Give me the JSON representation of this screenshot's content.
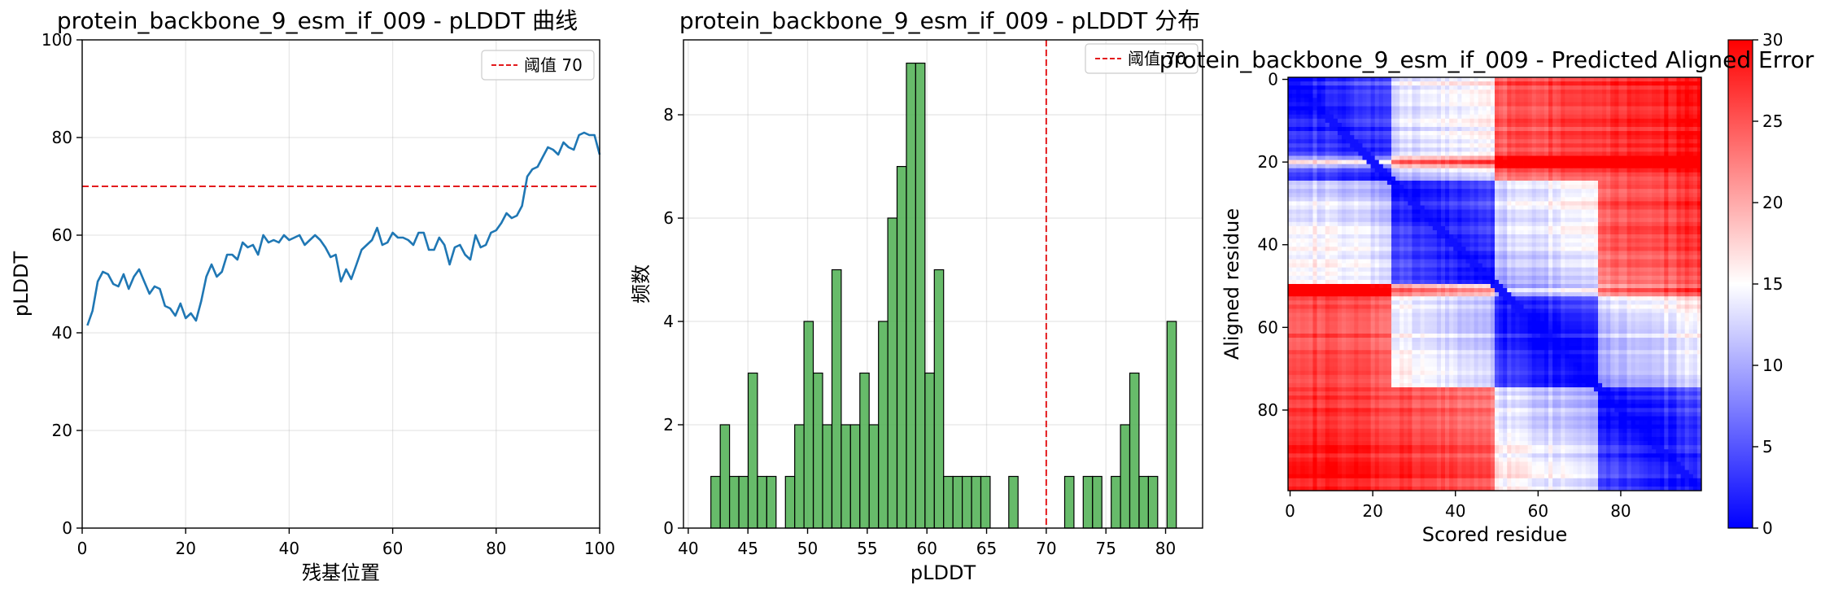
{
  "chart_data": [
    {
      "type": "line",
      "title": "protein_backbone_9_esm_if_009 - pLDDT 曲线",
      "xlabel": "残基位置",
      "ylabel": "pLDDT",
      "xlim": [
        0,
        100
      ],
      "ylim": [
        0,
        100
      ],
      "xticks": [
        "0",
        "20",
        "40",
        "60",
        "80",
        "100"
      ],
      "yticks": [
        "0",
        "20",
        "40",
        "60",
        "80",
        "100"
      ],
      "grid": true,
      "legend_placement": "upper-right",
      "line_color": "#1f77b4",
      "threshold": {
        "value": 70,
        "label": "阈值 70",
        "color": "#e31a1c"
      },
      "x": [
        1,
        2,
        3,
        4,
        5,
        6,
        7,
        8,
        9,
        10,
        11,
        12,
        13,
        14,
        15,
        16,
        17,
        18,
        19,
        20,
        21,
        22,
        23,
        24,
        25,
        26,
        27,
        28,
        29,
        30,
        31,
        32,
        33,
        34,
        35,
        36,
        37,
        38,
        39,
        40,
        41,
        42,
        43,
        44,
        45,
        46,
        47,
        48,
        49,
        50,
        51,
        52,
        53,
        54,
        55,
        56,
        57,
        58,
        59,
        60,
        61,
        62,
        63,
        64,
        65,
        66,
        67,
        68,
        69,
        70,
        71,
        72,
        73,
        74,
        75,
        76,
        77,
        78,
        79,
        80,
        81,
        82,
        83,
        84,
        85,
        86,
        87,
        88,
        89,
        90,
        91,
        92,
        93,
        94,
        95,
        96,
        97,
        98,
        99,
        100
      ],
      "y": [
        41.5,
        44.5,
        50.5,
        52.5,
        52.0,
        50.0,
        49.5,
        52.0,
        49.0,
        51.5,
        53.0,
        50.5,
        48.0,
        49.5,
        49.0,
        45.5,
        45.0,
        43.5,
        46.0,
        43.0,
        44.0,
        42.5,
        46.5,
        51.5,
        54.0,
        51.5,
        52.5,
        56.0,
        56.0,
        55.0,
        58.5,
        57.5,
        58.0,
        56.0,
        60.0,
        58.5,
        59.0,
        58.5,
        60.0,
        59.0,
        59.5,
        60.0,
        58.0,
        59.0,
        60.0,
        59.0,
        57.5,
        55.5,
        56.0,
        50.5,
        53.0,
        51.0,
        54.0,
        57.0,
        58.0,
        59.0,
        61.5,
        58.0,
        58.5,
        60.5,
        59.5,
        59.5,
        59.0,
        58.0,
        60.5,
        60.5,
        57.0,
        57.0,
        59.5,
        58.0,
        54.0,
        57.5,
        58.0,
        56.0,
        55.0,
        60.0,
        57.5,
        58.0,
        60.5,
        61.0,
        62.5,
        64.5,
        63.5,
        64.0,
        66.0,
        72.0,
        73.5,
        74.0,
        76.0,
        78.0,
        77.5,
        76.5,
        79.0,
        78.0,
        77.5,
        80.5,
        81.0,
        80.5,
        80.5,
        76.5
      ]
    },
    {
      "type": "bar",
      "title": "protein_backbone_9_esm_if_009 - pLDDT 分布",
      "xlabel": "pLDDT",
      "ylabel": "频数",
      "xlim": [
        39.6,
        83.1
      ],
      "ylim": [
        0,
        9.45
      ],
      "xticks": [
        "40",
        "45",
        "50",
        "55",
        "60",
        "65",
        "70",
        "75",
        "80"
      ],
      "yticks": [
        "0",
        "2",
        "4",
        "6",
        "8"
      ],
      "grid": true,
      "legend_placement": "upper-right",
      "bar_color": "#4caf50",
      "threshold": {
        "value": 70,
        "label": "阈值 70",
        "color": "#e31a1c"
      },
      "bin_width": 0.78,
      "bin_starts": [
        41.9,
        42.68,
        43.46,
        44.24,
        45.02,
        45.8,
        46.58,
        47.36,
        48.14,
        48.92,
        49.7,
        50.48,
        51.26,
        52.04,
        52.82,
        53.6,
        54.38,
        55.16,
        55.94,
        56.72,
        57.5,
        58.28,
        59.06,
        59.84,
        60.62,
        61.4,
        62.18,
        62.96,
        63.74,
        64.52,
        65.3,
        66.08,
        66.86,
        67.64,
        68.42,
        69.2,
        69.98,
        70.76,
        71.54,
        72.32,
        73.1,
        73.88,
        74.66,
        75.44,
        76.22,
        77.0,
        77.78,
        78.56,
        79.34,
        80.12
      ],
      "counts": [
        1,
        2,
        1,
        1,
        3,
        1,
        1,
        0,
        1,
        2,
        4,
        3,
        2,
        5,
        2,
        2,
        3,
        2,
        4,
        6,
        7,
        9,
        9,
        3,
        5,
        1,
        1,
        1,
        1,
        1,
        0,
        0,
        1,
        0,
        0,
        0,
        0,
        0,
        1,
        0,
        1,
        1,
        0,
        1,
        2,
        3,
        1,
        1,
        0,
        4
      ]
    },
    {
      "type": "heatmap",
      "title": "protein_backbone_9_esm_if_009 - Predicted Aligned Error",
      "xlabel": "Scored residue",
      "ylabel": "Aligned residue",
      "size": 100,
      "xticks": [
        "0",
        "20",
        "40",
        "60",
        "80"
      ],
      "yticks": [
        "0",
        "20",
        "40",
        "60",
        "80"
      ],
      "colormap": "bwr",
      "colorbar": {
        "min": 0,
        "max": 30,
        "ticks": [
          "0",
          "5",
          "10",
          "15",
          "20",
          "25",
          "30"
        ]
      },
      "pattern": {
        "domains": [
          [
            0,
            25
          ],
          [
            25,
            50
          ],
          [
            50,
            75
          ],
          [
            75,
            100
          ]
        ],
        "hinge_rows": [
          20,
          51
        ]
      }
    }
  ]
}
